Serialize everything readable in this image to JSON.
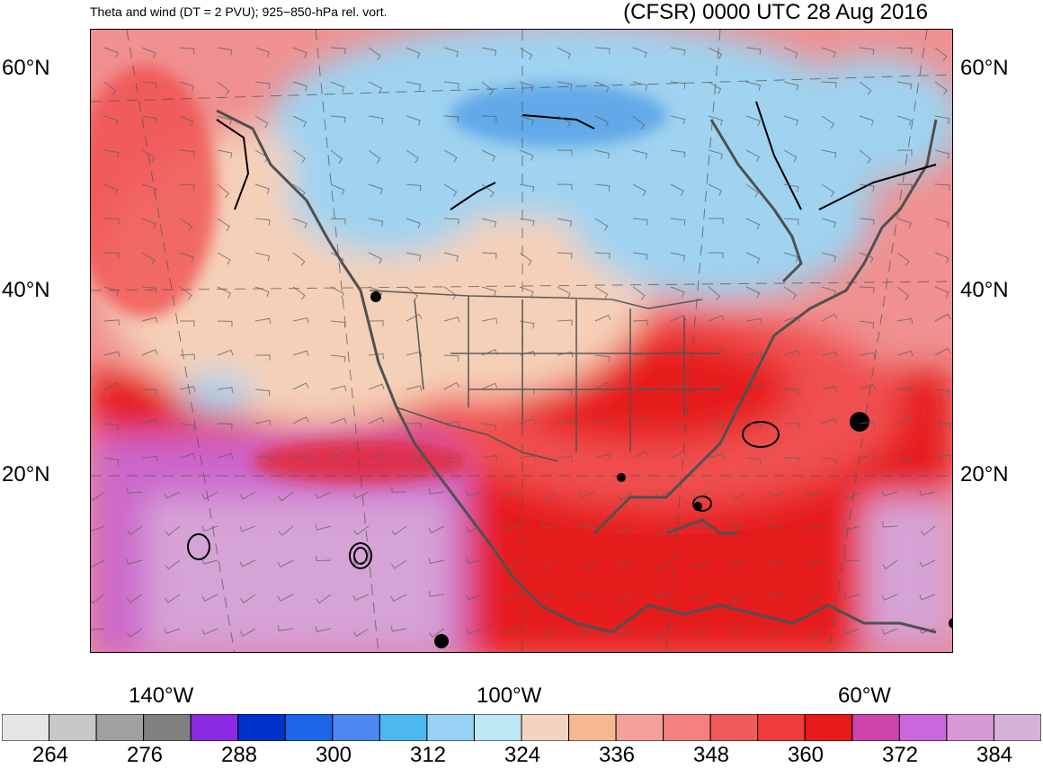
{
  "title_left": "Theta and wind (DT = 2 PVU); 925−850-hPa rel. vort.",
  "title_right": "(CFSR) 0000 UTC 28 Aug 2016",
  "lat_labels": [
    "60°N",
    "40°N",
    "20°N"
  ],
  "lon_labels": [
    "140°W",
    "100°W",
    "60°W"
  ],
  "colorbar": {
    "labels": [
      "264",
      "276",
      "288",
      "300",
      "312",
      "324",
      "336",
      "348",
      "360",
      "372",
      "384"
    ],
    "colors": [
      "#e6e6e6",
      "#c8c8c8",
      "#a0a0a0",
      "#808080",
      "#8a2be2",
      "#0033cc",
      "#1a66e6",
      "#4d88f0",
      "#4db8f0",
      "#99d1f5",
      "#bfe8f5",
      "#f5d4bf",
      "#f5b891",
      "#f5a09a",
      "#f58080",
      "#f05a5a",
      "#f03c3c",
      "#e61a1a",
      "#cc44aa",
      "#cc66dd",
      "#d699d6",
      "#d6b3d6"
    ]
  },
  "map_colors": {
    "ocean_north": "#f09090",
    "cold_air": "#9fd3f0",
    "cool_air": "#f5d0b8",
    "warm_air": "#f05050",
    "tropical": "#e61a1a",
    "purple": "#cc66cc",
    "lilac": "#d6a3d6",
    "land_line": "#505050"
  }
}
